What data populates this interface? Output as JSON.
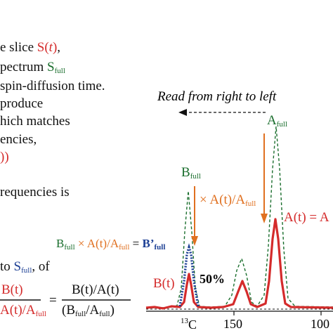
{
  "text_lines": [
    {
      "before": "e slice ",
      "hl": "S(t)",
      "after": ","
    },
    {
      "before": "pectrum ",
      "hl": "S",
      "hl_sub": "full"
    },
    {
      "before": "spin-diffusion time."
    },
    {
      "before": " produce"
    },
    {
      "before": "hich matches"
    },
    {
      "before": "encies,"
    },
    {
      "hl": "))"
    },
    {
      "before": "requencies is"
    }
  ],
  "line9": {
    "before": " to ",
    "hl": "S",
    "hl_sub": "full",
    "after": ", of"
  },
  "arrow_caption": "Read from right to left",
  "labels": {
    "a_full": "A",
    "a_full_sub": "full",
    "b_full": "B",
    "b_full_sub": "full",
    "x_ratio": "× A(t)/A",
    "x_ratio_sub": "full",
    "a_t": "A(t) = A",
    "eq_left_b": "B",
    "eq_left_b_sub": "full",
    "eq_left_rest": " × A(t)/A",
    "eq_left_rest_sub": "full",
    "eq_eq": " = ",
    "eq_bprime": "B’",
    "eq_bprime_sub": "full",
    "b_t": "B(t)",
    "percent": "50%"
  },
  "fraction": {
    "left_num": "B(t)",
    "left_den": "A(t)/A",
    "left_den_sub": "full",
    "equals": "=",
    "right_num": "B(t)/A(t)",
    "right_den": "(B",
    "right_den_sub": "full",
    "right_den_rest": "/A",
    "right_den_sub2": "full",
    "right_den_end": ")"
  },
  "axis": {
    "label_sup": "13",
    "label": "C",
    "ticks": [
      "150",
      "100"
    ]
  },
  "colors": {
    "red": "#d42b2b",
    "green": "#1a6e2d",
    "blue": "#1c3f94",
    "orange": "#e07020",
    "black": "#111111"
  }
}
